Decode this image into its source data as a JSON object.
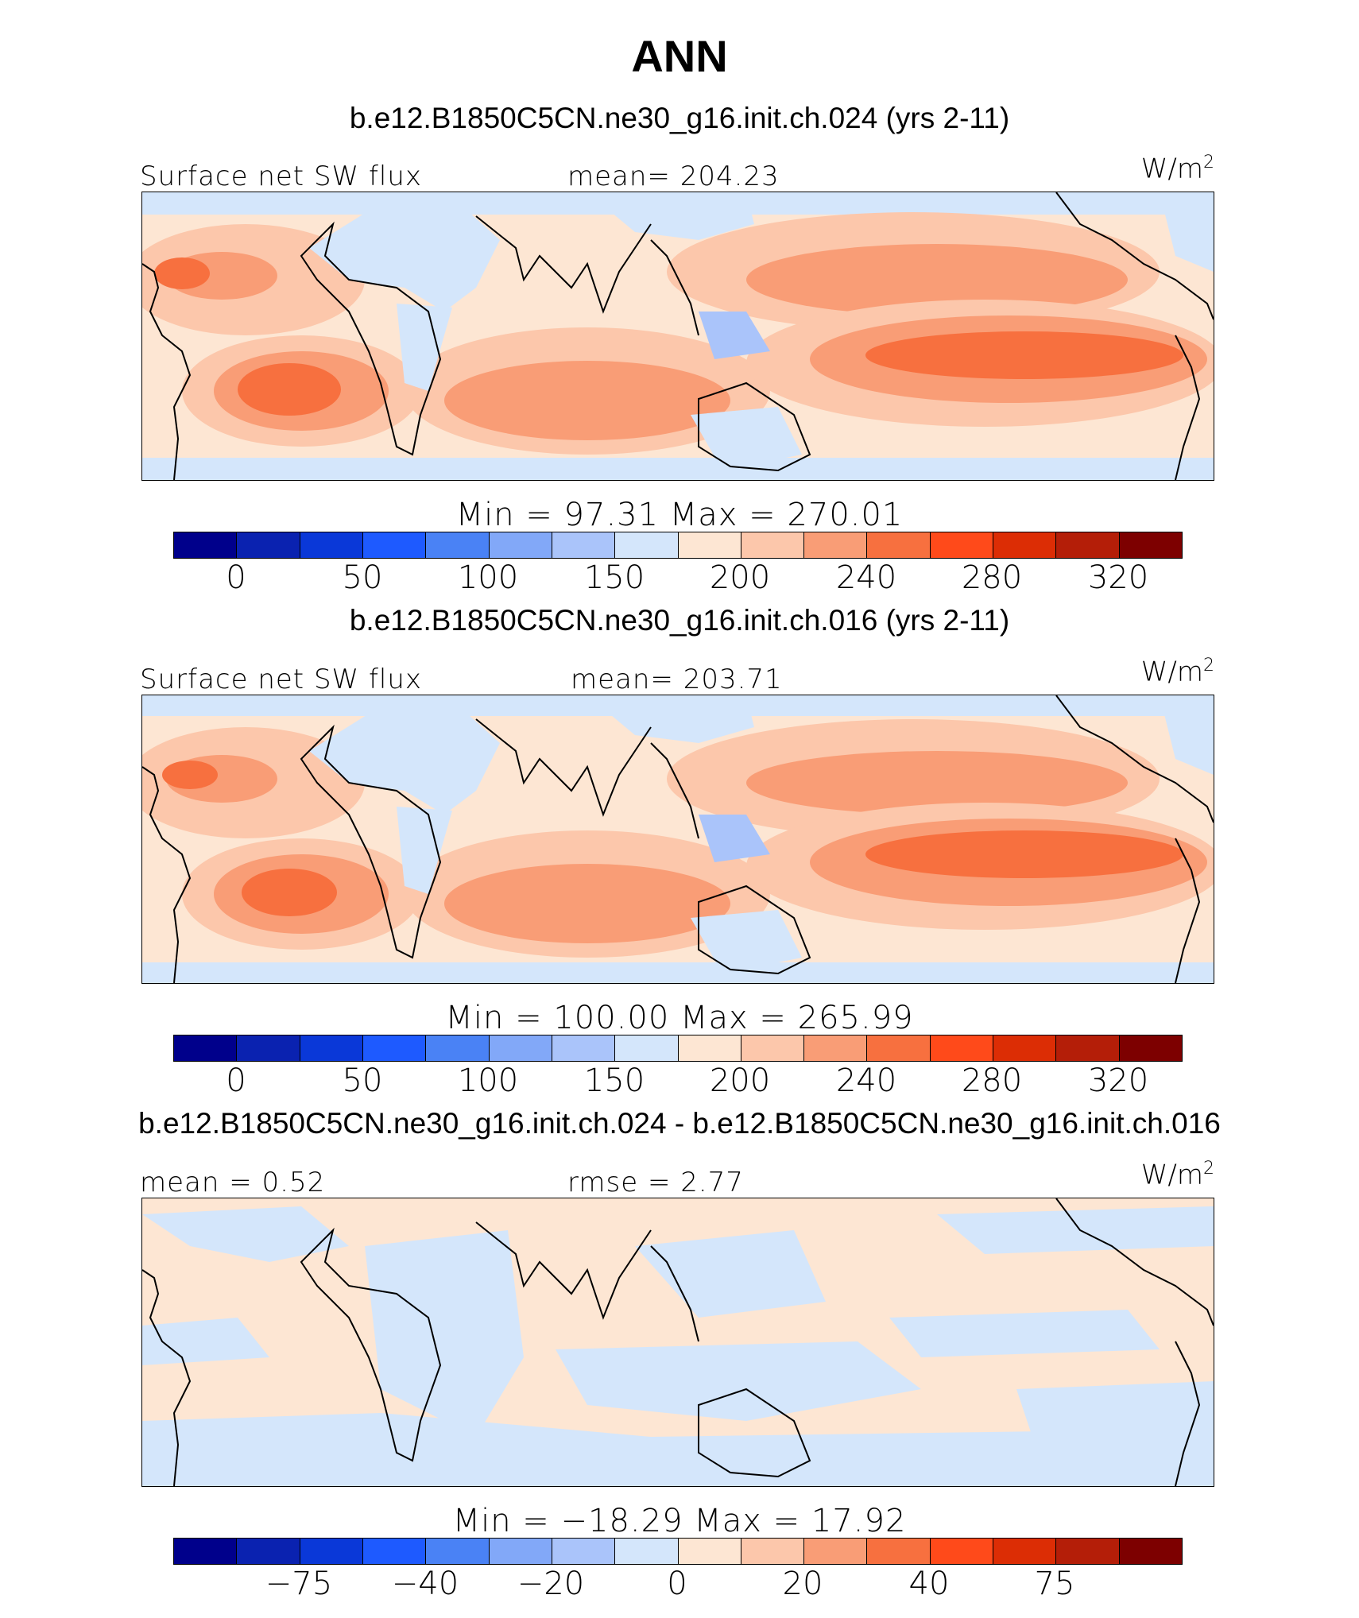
{
  "title": "ANN",
  "colors": {
    "scale": [
      "#00008b",
      "#0a22b0",
      "#0a38d8",
      "#1e5aff",
      "#4a82f5",
      "#82a8f8",
      "#aac4fa",
      "#d4e6fb",
      "#fde6d3",
      "#fcc7ab",
      "#f99d76",
      "#f7703f",
      "#ff4a1a",
      "#dc2d05",
      "#b41e08",
      "#7d0000"
    ],
    "coast": "#000000"
  },
  "panels": [
    {
      "case_title": "b.e12.B1850C5CN.ne30_g16.init.ch.024 (yrs 2-11)",
      "left_label": "Surface net SW flux",
      "center_label": "mean= 204.23",
      "units": "W/m",
      "units_sup": "2",
      "minmax": "Min = 97.31 Max = 270.01",
      "tick_labels": [
        "0",
        "50",
        "100",
        "150",
        "200",
        "240",
        "280",
        "320"
      ]
    },
    {
      "case_title": "b.e12.B1850C5CN.ne30_g16.init.ch.016 (yrs 2-11)",
      "left_label": "Surface net SW flux",
      "center_label": "mean= 203.71",
      "units": "W/m",
      "units_sup": "2",
      "minmax": "Min = 100.00 Max = 265.99",
      "tick_labels": [
        "0",
        "50",
        "100",
        "150",
        "200",
        "240",
        "280",
        "320"
      ]
    },
    {
      "case_title": "b.e12.B1850C5CN.ne30_g16.init.ch.024 - b.e12.B1850C5CN.ne30_g16.init.ch.016",
      "left_label": "mean = 0.52",
      "center_label": "rmse = 2.77",
      "units": "W/m",
      "units_sup": "2",
      "minmax": "Min = −18.29 Max = 17.92",
      "tick_labels": [
        "−75",
        "−40",
        "−20",
        "0",
        "20",
        "40",
        "75"
      ]
    }
  ]
}
